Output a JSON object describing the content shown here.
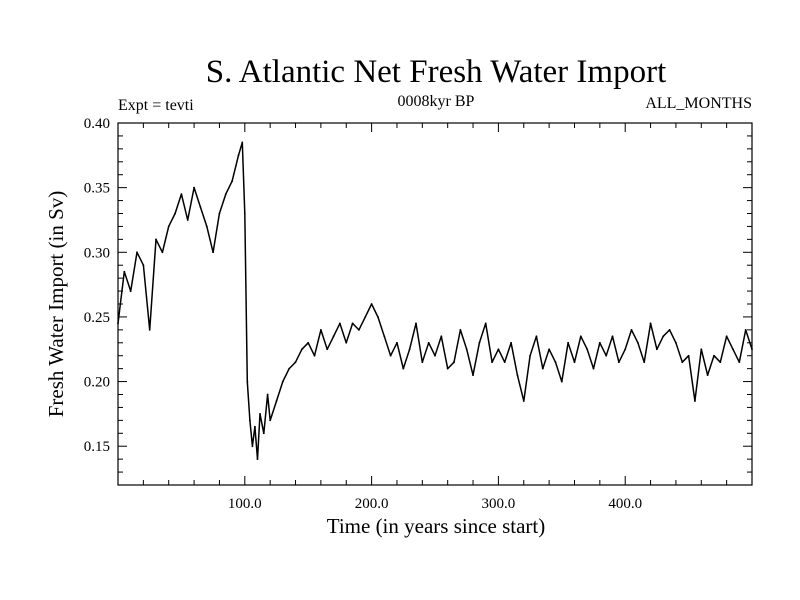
{
  "chart_data": {
    "type": "line",
    "title": "S. Atlantic Net Fresh Water Import",
    "subtitle_left": "Expt = tevti",
    "subtitle_center": "0008kyr BP",
    "subtitle_right": "ALL_MONTHS",
    "xlabel": "Time (in years since start)",
    "ylabel": "Fresh Water Import (in Sv)",
    "xlim": [
      0,
      500
    ],
    "ylim": [
      0.12,
      0.4
    ],
    "x_ticks": [
      100,
      200,
      300,
      400
    ],
    "x_tick_labels": [
      "100.0",
      "200.0",
      "300.0",
      "400.0"
    ],
    "y_ticks": [
      0.15,
      0.2,
      0.25,
      0.3,
      0.35,
      0.4
    ],
    "y_tick_labels": [
      "0.15",
      "0.20",
      "0.25",
      "0.30",
      "0.35",
      "0.40"
    ],
    "grid": false,
    "line_color": "#000000",
    "series": [
      {
        "x": [
          0,
          5,
          10,
          15,
          20,
          25,
          30,
          35,
          40,
          45,
          50,
          55,
          60,
          65,
          70,
          75,
          80,
          85,
          90,
          95,
          98,
          100,
          102,
          104,
          106,
          108,
          110,
          112,
          115,
          118,
          120,
          125,
          130,
          135,
          140,
          145,
          150,
          155,
          160,
          165,
          170,
          175,
          180,
          185,
          190,
          195,
          200,
          205,
          210,
          215,
          220,
          225,
          230,
          235,
          240,
          245,
          250,
          255,
          260,
          265,
          270,
          275,
          280,
          285,
          290,
          295,
          300,
          305,
          310,
          315,
          320,
          325,
          330,
          335,
          340,
          345,
          350,
          355,
          360,
          365,
          370,
          375,
          380,
          385,
          390,
          395,
          400,
          405,
          410,
          415,
          420,
          425,
          430,
          435,
          440,
          445,
          450,
          455,
          460,
          465,
          470,
          475,
          480,
          485,
          490,
          495,
          500
        ],
        "values": [
          0.245,
          0.285,
          0.27,
          0.3,
          0.29,
          0.24,
          0.31,
          0.3,
          0.32,
          0.33,
          0.345,
          0.325,
          0.35,
          0.335,
          0.32,
          0.3,
          0.33,
          0.345,
          0.355,
          0.375,
          0.385,
          0.33,
          0.2,
          0.17,
          0.15,
          0.165,
          0.14,
          0.175,
          0.16,
          0.19,
          0.17,
          0.185,
          0.2,
          0.21,
          0.215,
          0.225,
          0.23,
          0.22,
          0.24,
          0.225,
          0.235,
          0.245,
          0.23,
          0.245,
          0.24,
          0.25,
          0.26,
          0.25,
          0.235,
          0.22,
          0.23,
          0.21,
          0.225,
          0.245,
          0.215,
          0.23,
          0.22,
          0.235,
          0.21,
          0.215,
          0.24,
          0.225,
          0.205,
          0.23,
          0.245,
          0.215,
          0.225,
          0.215,
          0.23,
          0.205,
          0.185,
          0.22,
          0.235,
          0.21,
          0.225,
          0.215,
          0.2,
          0.23,
          0.215,
          0.235,
          0.225,
          0.21,
          0.23,
          0.22,
          0.235,
          0.215,
          0.225,
          0.24,
          0.23,
          0.215,
          0.245,
          0.225,
          0.235,
          0.24,
          0.23,
          0.215,
          0.22,
          0.185,
          0.225,
          0.205,
          0.22,
          0.215,
          0.235,
          0.225,
          0.215,
          0.24,
          0.225
        ]
      }
    ]
  }
}
